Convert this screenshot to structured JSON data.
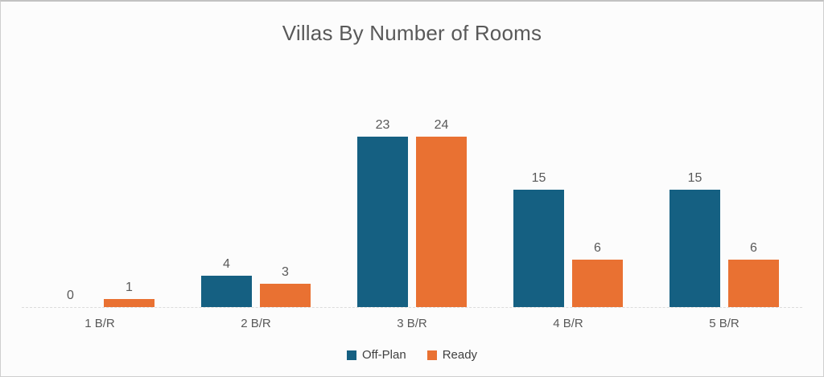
{
  "window": {
    "background": "#FCFCFC",
    "frame_border_color": "#CFCFCF"
  },
  "chart_data": {
    "type": "bar",
    "title": "Villas By Number of Rooms",
    "categories": [
      "1 B/R",
      "2 B/R",
      "3 B/R",
      "4 B/R",
      "5 B/R"
    ],
    "series": [
      {
        "name": "Off-Plan",
        "color": "#156082",
        "values": [
          0,
          4,
          23,
          15,
          15
        ]
      },
      {
        "name": "Ready",
        "color": "#E97132",
        "values": [
          1,
          3,
          24,
          6,
          6
        ]
      }
    ],
    "xlabel": "",
    "ylabel": "",
    "ylim": [
      0,
      24
    ],
    "value_labels": true,
    "grid": false,
    "axis_line_color": "#DCDCDC",
    "text_color": "#595959",
    "legend_position": "bottom"
  }
}
